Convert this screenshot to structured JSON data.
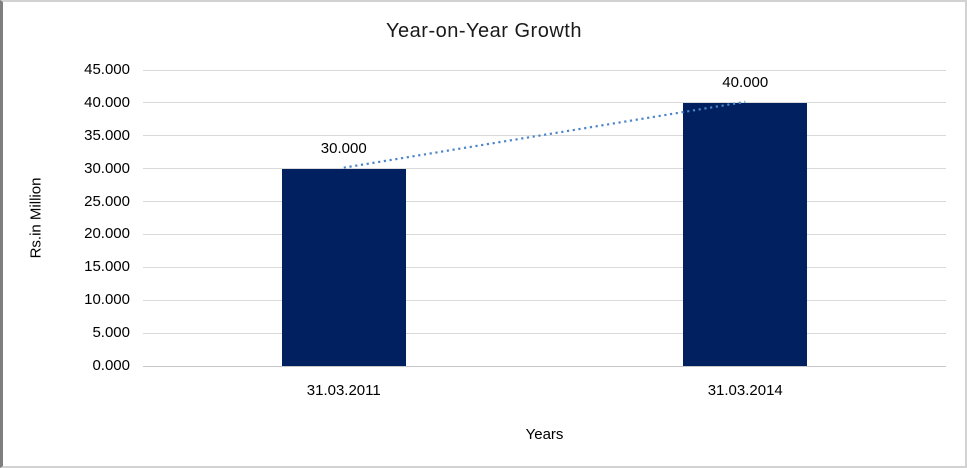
{
  "frame": {
    "background": "#ffffff",
    "border_color": "#d2d2d2",
    "border_left_color": "#7f7f7f"
  },
  "chart_data": {
    "type": "bar",
    "title": "Year-on-Year Growth",
    "xlabel": "Years",
    "ylabel": "Rs.in Million",
    "categories": [
      "31.03.2011",
      "31.03.2014"
    ],
    "values": [
      30,
      40
    ],
    "data_labels": [
      "30.000",
      "40.000"
    ],
    "yticks": [
      "45.000",
      "40.000",
      "35.000",
      "30.000",
      "25.000",
      "20.000",
      "15.000",
      "10.000",
      "5.000",
      "0.000"
    ],
    "ylim": [
      0,
      45
    ],
    "grid": true,
    "legend": "none",
    "bar_color": "#002060",
    "gridline_color": "#d9d9d9",
    "trendline": {
      "style": "dotted",
      "color": "#4a86c8",
      "connects": [
        {
          "category": "31.03.2011",
          "value": 30
        },
        {
          "category": "31.03.2014",
          "value": 40
        }
      ]
    }
  }
}
